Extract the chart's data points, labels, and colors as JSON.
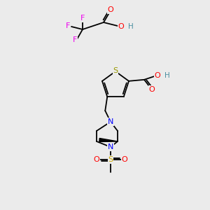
{
  "bg_color": "#ebebeb",
  "colors": {
    "O": "#ff0000",
    "N": "#0000ff",
    "S_thiophene": "#999900",
    "S_sulfonyl": "#ccaa00",
    "F": "#ee00ee",
    "H": "#4a8fa0",
    "bond": "#000000"
  },
  "figsize": [
    3.0,
    3.0
  ],
  "dpi": 100
}
